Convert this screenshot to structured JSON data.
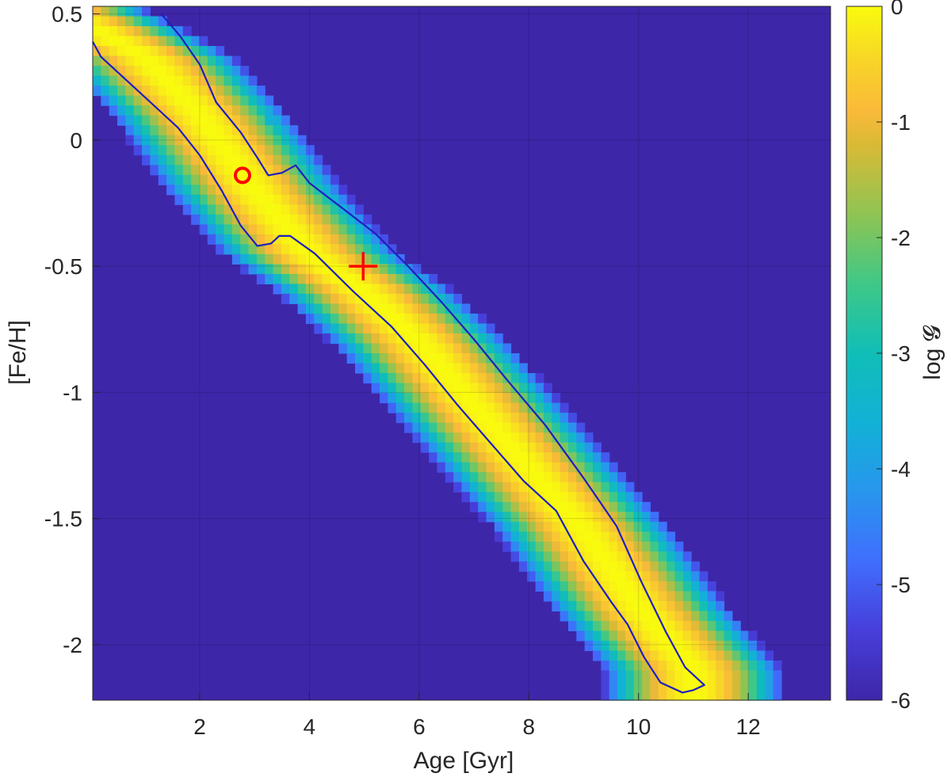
{
  "chart_data": {
    "type": "heatmap",
    "title": "",
    "xlabel": "Age [Gyr]",
    "ylabel": "[Fe/H]",
    "xlim": [
      0.05,
      13.5
    ],
    "ylim": [
      -2.22,
      0.53
    ],
    "xticks": [
      2,
      4,
      6,
      8,
      10,
      12
    ],
    "xtick_labels": [
      "2",
      "4",
      "6",
      "8",
      "10",
      "12"
    ],
    "yticks": [
      0.5,
      0,
      -0.5,
      -1,
      -1.5,
      -2
    ],
    "ytick_labels": [
      "0.5",
      "0",
      "-0.5",
      "-1",
      "-1.5",
      "-2"
    ],
    "grid": true,
    "colormap": "parula",
    "colorbar": {
      "label": "log 𝓖",
      "range": [
        -6,
        0
      ],
      "ticks": [
        0,
        -1,
        -2,
        -3,
        -4,
        -5,
        -6
      ],
      "tick_labels": [
        "0",
        "-1",
        "-2",
        "-3",
        "-4",
        "-5",
        "-6"
      ]
    },
    "ridge": {
      "description": "peak of log G follows an age-metallicity relation",
      "points": [
        [
          0.0,
          0.45
        ],
        [
          1.0,
          0.33
        ],
        [
          2.0,
          0.1
        ],
        [
          3.0,
          -0.2
        ],
        [
          4.0,
          -0.45
        ],
        [
          5.0,
          -0.6
        ],
        [
          6.0,
          -0.8
        ],
        [
          7.0,
          -1.05
        ],
        [
          8.0,
          -1.3
        ],
        [
          9.0,
          -1.55
        ],
        [
          10.0,
          -1.85
        ],
        [
          11.0,
          -2.1
        ]
      ],
      "band_half_width_age_gyr": 1.7,
      "peak_value": 0,
      "floor_value": -6
    },
    "contour": {
      "color": "#1f1fbf",
      "points": [
        [
          1.3,
          0.5
        ],
        [
          1.65,
          0.41
        ],
        [
          2.0,
          0.3
        ],
        [
          2.3,
          0.15
        ],
        [
          2.75,
          0.03
        ],
        [
          3.05,
          -0.07
        ],
        [
          3.25,
          -0.14
        ],
        [
          3.5,
          -0.13
        ],
        [
          3.75,
          -0.1
        ],
        [
          4.0,
          -0.17
        ],
        [
          4.6,
          -0.27
        ],
        [
          5.2,
          -0.37
        ],
        [
          5.8,
          -0.5
        ],
        [
          6.4,
          -0.64
        ],
        [
          7.0,
          -0.79
        ],
        [
          7.6,
          -0.95
        ],
        [
          8.3,
          -1.13
        ],
        [
          9.0,
          -1.34
        ],
        [
          9.6,
          -1.53
        ],
        [
          10.05,
          -1.75
        ],
        [
          10.5,
          -1.95
        ],
        [
          10.85,
          -2.09
        ],
        [
          11.2,
          -2.16
        ],
        [
          11.0,
          -2.18
        ],
        [
          10.8,
          -2.19
        ],
        [
          10.4,
          -2.15
        ],
        [
          10.1,
          -2.05
        ],
        [
          9.8,
          -1.92
        ],
        [
          9.5,
          -1.83
        ],
        [
          9.0,
          -1.67
        ],
        [
          8.5,
          -1.47
        ],
        [
          7.9,
          -1.35
        ],
        [
          7.3,
          -1.2
        ],
        [
          6.7,
          -1.05
        ],
        [
          6.1,
          -0.89
        ],
        [
          5.5,
          -0.74
        ],
        [
          4.8,
          -0.6
        ],
        [
          4.1,
          -0.45
        ],
        [
          3.65,
          -0.38
        ],
        [
          3.45,
          -0.38
        ],
        [
          3.3,
          -0.41
        ],
        [
          3.05,
          -0.42
        ],
        [
          2.75,
          -0.34
        ],
        [
          2.4,
          -0.2
        ],
        [
          2.0,
          -0.06
        ],
        [
          1.6,
          0.05
        ],
        [
          1.1,
          0.15
        ],
        [
          0.6,
          0.25
        ],
        [
          0.2,
          0.33
        ],
        [
          0.05,
          0.39
        ]
      ]
    },
    "markers": [
      {
        "shape": "circle",
        "age": 2.78,
        "feh": -0.14,
        "color": "#ff0000"
      },
      {
        "shape": "plus",
        "age": 4.98,
        "feh": -0.5,
        "color": "#ff0000"
      }
    ]
  }
}
